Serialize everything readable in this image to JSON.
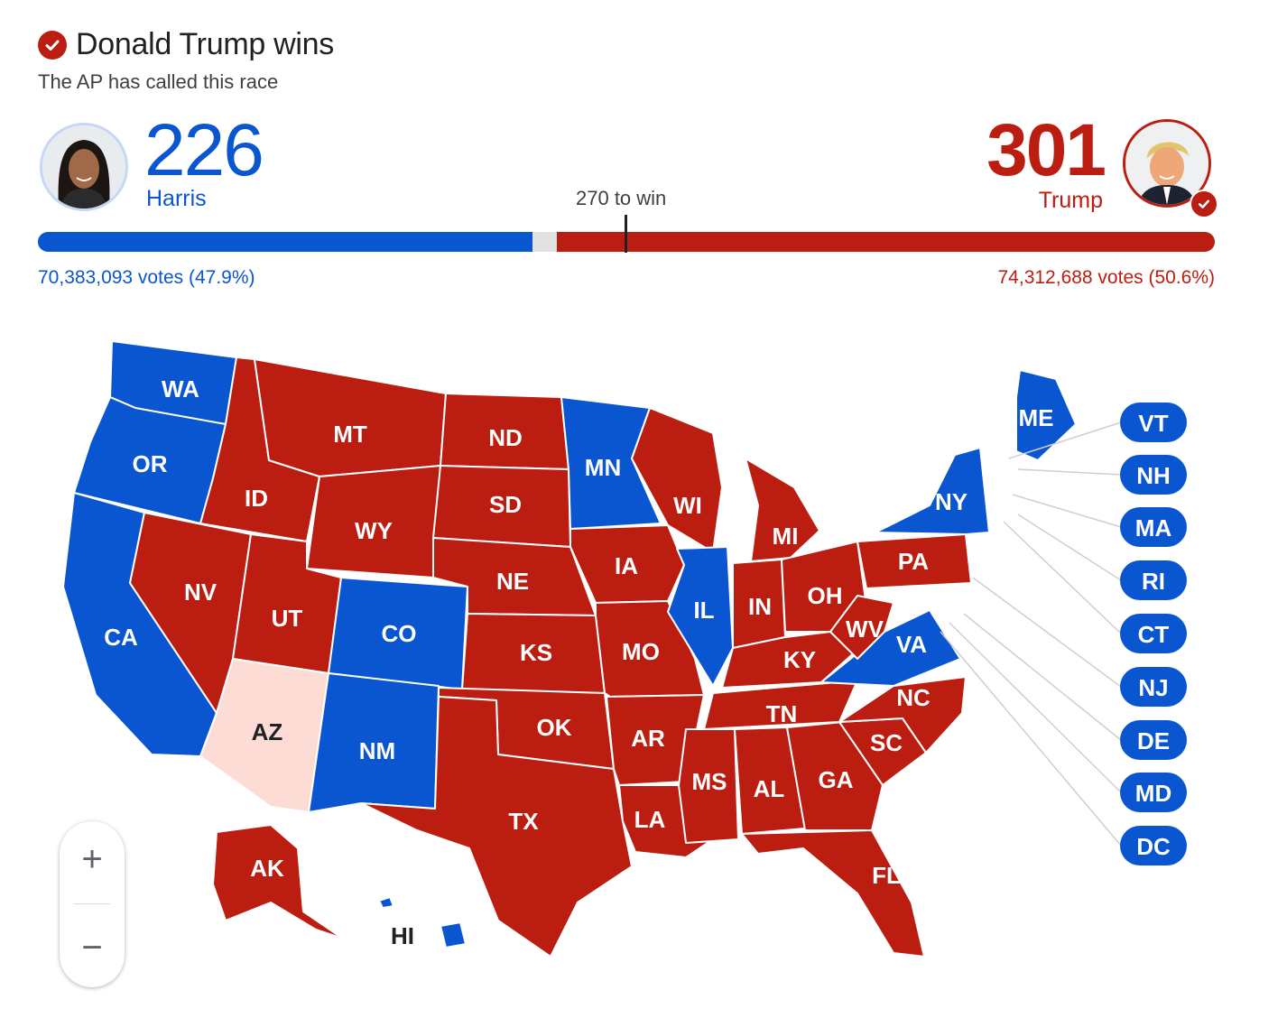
{
  "header": {
    "headline": "Donald Trump wins",
    "subhead": "The AP has called this race"
  },
  "candidates": {
    "harris": {
      "name": "Harris",
      "electoral_votes": "226",
      "popular_votes": "70,383,093 votes (47.9%)",
      "color": "#0a56d0"
    },
    "trump": {
      "name": "Trump",
      "electoral_votes": "301",
      "popular_votes": "74,312,688 votes (50.6%)",
      "color": "#bb1e10",
      "winner": true
    }
  },
  "threshold": {
    "label": "270 to win",
    "value": 270,
    "total": 538
  },
  "map": {
    "states": [
      {
        "abbr": "WA",
        "winner": "harris"
      },
      {
        "abbr": "OR",
        "winner": "harris"
      },
      {
        "abbr": "CA",
        "winner": "harris"
      },
      {
        "abbr": "NV",
        "winner": "trump"
      },
      {
        "abbr": "ID",
        "winner": "trump"
      },
      {
        "abbr": "MT",
        "winner": "trump"
      },
      {
        "abbr": "WY",
        "winner": "trump"
      },
      {
        "abbr": "UT",
        "winner": "trump"
      },
      {
        "abbr": "AZ",
        "winner": "uncalled"
      },
      {
        "abbr": "CO",
        "winner": "harris"
      },
      {
        "abbr": "NM",
        "winner": "harris"
      },
      {
        "abbr": "ND",
        "winner": "trump"
      },
      {
        "abbr": "SD",
        "winner": "trump"
      },
      {
        "abbr": "NE",
        "winner": "trump"
      },
      {
        "abbr": "KS",
        "winner": "trump"
      },
      {
        "abbr": "OK",
        "winner": "trump"
      },
      {
        "abbr": "TX",
        "winner": "trump"
      },
      {
        "abbr": "MN",
        "winner": "harris"
      },
      {
        "abbr": "IA",
        "winner": "trump"
      },
      {
        "abbr": "MO",
        "winner": "trump"
      },
      {
        "abbr": "AR",
        "winner": "trump"
      },
      {
        "abbr": "LA",
        "winner": "trump"
      },
      {
        "abbr": "WI",
        "winner": "trump"
      },
      {
        "abbr": "IL",
        "winner": "harris"
      },
      {
        "abbr": "MI",
        "winner": "trump"
      },
      {
        "abbr": "IN",
        "winner": "trump"
      },
      {
        "abbr": "OH",
        "winner": "trump"
      },
      {
        "abbr": "KY",
        "winner": "trump"
      },
      {
        "abbr": "TN",
        "winner": "trump"
      },
      {
        "abbr": "MS",
        "winner": "trump"
      },
      {
        "abbr": "AL",
        "winner": "trump"
      },
      {
        "abbr": "GA",
        "winner": "trump"
      },
      {
        "abbr": "FL",
        "winner": "trump"
      },
      {
        "abbr": "SC",
        "winner": "trump"
      },
      {
        "abbr": "NC",
        "winner": "trump"
      },
      {
        "abbr": "VA",
        "winner": "harris"
      },
      {
        "abbr": "WV",
        "winner": "trump"
      },
      {
        "abbr": "PA",
        "winner": "trump"
      },
      {
        "abbr": "NY",
        "winner": "harris"
      },
      {
        "abbr": "ME",
        "winner": "harris"
      },
      {
        "abbr": "AK",
        "winner": "trump"
      },
      {
        "abbr": "HI",
        "winner": "harris"
      }
    ],
    "callouts": [
      {
        "abbr": "VT",
        "winner": "harris"
      },
      {
        "abbr": "NH",
        "winner": "harris"
      },
      {
        "abbr": "MA",
        "winner": "harris"
      },
      {
        "abbr": "RI",
        "winner": "harris"
      },
      {
        "abbr": "CT",
        "winner": "harris"
      },
      {
        "abbr": "NJ",
        "winner": "harris"
      },
      {
        "abbr": "DE",
        "winner": "harris"
      },
      {
        "abbr": "MD",
        "winner": "harris"
      },
      {
        "abbr": "DC",
        "winner": "harris"
      }
    ],
    "colors": {
      "harris": "#0a56d0",
      "trump": "#bb1e10",
      "uncalled": "#fcdcd5",
      "border": "#ffffff"
    }
  },
  "zoom": {
    "in_label": "+",
    "out_label": "−"
  }
}
